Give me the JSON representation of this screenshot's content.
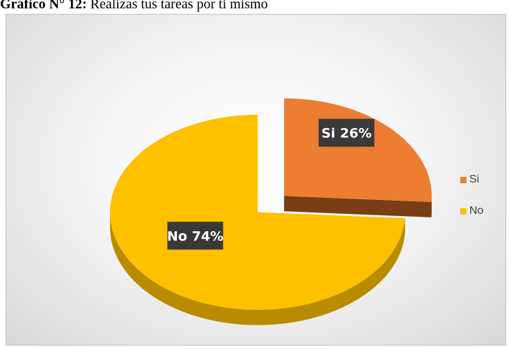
{
  "caption": {
    "lead": "Gráfico N° 12:",
    "text": " Realizas tus tareas por ti mismo"
  },
  "colors": {
    "si": "#ED7D31",
    "si_side": "#7A3E14",
    "no": "#FFC000",
    "no_side": "#B98C00",
    "label_bg": "#3A3A3A",
    "label_text": "#FFFFFF"
  },
  "chart_data": {
    "type": "pie",
    "categories": [
      "Si",
      "No"
    ],
    "values": [
      26,
      74
    ],
    "data_labels": [
      "Si 26%",
      "No 74%"
    ],
    "exploded": true,
    "three_d": true,
    "legend": "right"
  },
  "legend": {
    "items": [
      {
        "label": "Si"
      },
      {
        "label": "No"
      }
    ]
  }
}
